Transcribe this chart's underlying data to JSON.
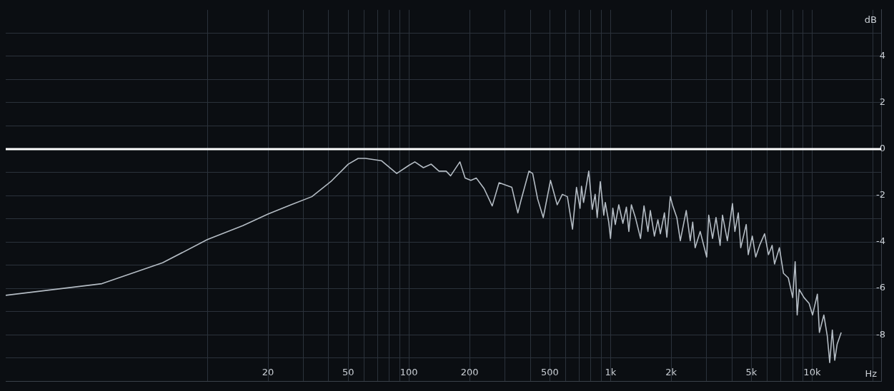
{
  "chart_data": {
    "type": "line",
    "xlabel": "Hz",
    "ylabel": "dB",
    "log": "x",
    "grid": true,
    "legend": false,
    "marker": "none",
    "line_style": "solid",
    "xlim": [
      1,
      22000
    ],
    "ylim": [
      -10,
      6
    ],
    "xticks": [
      {
        "value": 10,
        "label": null
      },
      20,
      {
        "value": 30,
        "label": null
      },
      {
        "value": 40,
        "label": null
      },
      50,
      {
        "value": 60,
        "label": null
      },
      {
        "value": 70,
        "label": null
      },
      {
        "value": 80,
        "label": null
      },
      {
        "value": 90,
        "label": null
      },
      100,
      200,
      {
        "value": 300,
        "label": null
      },
      {
        "value": 400,
        "label": null
      },
      500,
      {
        "value": 600,
        "label": null
      },
      {
        "value": 700,
        "label": null
      },
      {
        "value": 800,
        "label": null
      },
      {
        "value": 900,
        "label": null
      },
      {
        "value": 1000,
        "label": "1k"
      },
      {
        "value": 2000,
        "label": "2k"
      },
      {
        "value": 3000,
        "label": null
      },
      {
        "value": 4000,
        "label": null
      },
      {
        "value": 5000,
        "label": "5k"
      },
      {
        "value": 6000,
        "label": null
      },
      {
        "value": 7000,
        "label": null
      },
      {
        "value": 8000,
        "label": null
      },
      {
        "value": 9000,
        "label": null
      },
      {
        "value": 10000,
        "label": "10k"
      },
      {
        "value": 20000,
        "label": null
      }
    ],
    "yticks": [
      {
        "value": -9,
        "label": null
      },
      -8,
      {
        "value": -7,
        "label": null
      },
      -6,
      {
        "value": -5,
        "label": null
      },
      -4,
      {
        "value": -3,
        "label": null
      },
      -2,
      {
        "value": -1,
        "label": null
      },
      0,
      {
        "value": 1,
        "label": null
      },
      2,
      {
        "value": 3,
        "label": null
      },
      4,
      {
        "value": 5,
        "label": null
      }
    ],
    "ref_lines": [
      {
        "axis": "y",
        "value": 0,
        "color": "#ffffff"
      }
    ],
    "series": [
      {
        "color": "#b4bcc4",
        "x": [
          1,
          3,
          6,
          10,
          15,
          20,
          26,
          33,
          41,
          50,
          56,
          61,
          73,
          87,
          100,
          107,
          118,
          129,
          141,
          153,
          161,
          179,
          190,
          203,
          216,
          236,
          259,
          280,
          301,
          324,
          347,
          360,
          394,
          411,
          435,
          464,
          504,
          544,
          577,
          611,
          648,
          678,
          706,
          718,
          735,
          780,
          812,
          839,
          859,
          890,
          926,
          942,
          980,
          1000,
          1027,
          1056,
          1099,
          1152,
          1199,
          1233,
          1269,
          1329,
          1409,
          1466,
          1533,
          1576,
          1651,
          1718,
          1767,
          1851,
          1903,
          1980,
          2037,
          2133,
          2219,
          2375,
          2486,
          2557,
          2629,
          2785,
          3000,
          3070,
          3208,
          3337,
          3496,
          3594,
          3799,
          4026,
          4139,
          4305,
          4426,
          4712,
          4822,
          5050,
          5252,
          5488,
          5814,
          6075,
          6333,
          6511,
          6882,
          7208,
          7618,
          8015,
          8240,
          8433,
          8630,
          9121,
          9663,
          10049,
          10621,
          10869,
          11435,
          11892,
          12226,
          12598,
          12952,
          13315,
          13944
        ],
        "values": [
          -6.3,
          -5.8,
          -4.9,
          -3.9,
          -3.3,
          -2.8,
          -2.4,
          -2.05,
          -1.4,
          -0.65,
          -0.4,
          -0.4,
          -0.5,
          -1.05,
          -0.7,
          -0.55,
          -0.8,
          -0.65,
          -0.95,
          -0.95,
          -1.15,
          -0.55,
          -1.25,
          -1.35,
          -1.25,
          -1.7,
          -2.45,
          -1.45,
          -1.55,
          -1.65,
          -2.75,
          -2.2,
          -0.95,
          -1.05,
          -2.15,
          -2.95,
          -1.35,
          -2.4,
          -1.95,
          -2.05,
          -3.45,
          -1.65,
          -2.55,
          -1.6,
          -2.3,
          -0.95,
          -2.6,
          -1.95,
          -2.95,
          -1.4,
          -2.85,
          -2.3,
          -3.15,
          -3.85,
          -2.55,
          -3.25,
          -2.4,
          -3.2,
          -2.5,
          -3.55,
          -2.4,
          -2.95,
          -3.85,
          -2.45,
          -3.55,
          -2.65,
          -3.75,
          -3.05,
          -3.65,
          -2.75,
          -3.8,
          -2.05,
          -2.45,
          -2.95,
          -3.95,
          -2.65,
          -3.95,
          -3.15,
          -4.25,
          -3.55,
          -4.65,
          -2.85,
          -3.85,
          -2.95,
          -4.15,
          -2.85,
          -3.95,
          -2.35,
          -3.55,
          -2.75,
          -4.25,
          -3.25,
          -4.55,
          -3.75,
          -4.65,
          -4.15,
          -3.65,
          -4.55,
          -4.15,
          -4.95,
          -4.25,
          -5.35,
          -5.55,
          -6.4,
          -4.85,
          -7.15,
          -6.05,
          -6.4,
          -6.65,
          -7.15,
          -6.25,
          -7.9,
          -7.15,
          -8.05,
          -9.2,
          -7.8,
          -9.1,
          -8.4,
          -7.9
        ]
      }
    ]
  }
}
